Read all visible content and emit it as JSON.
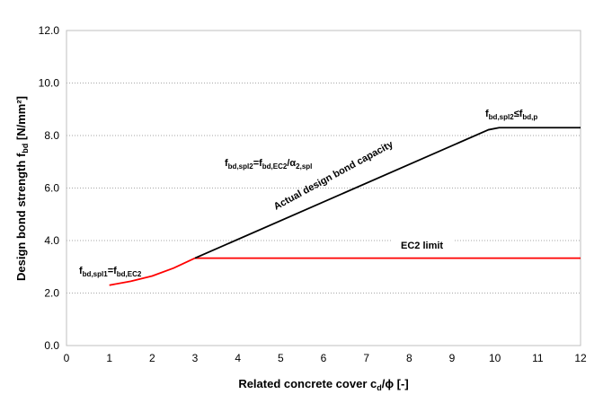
{
  "chart_data": {
    "type": "line",
    "title": "",
    "xlabel_main": "Related concrete cover c",
    "xlabel_sub": "d",
    "xlabel_tail": "/ϕ [-]",
    "ylabel_main": "Design bond strength f",
    "ylabel_sub": "bd",
    "ylabel_tail": " [N/mm²]",
    "xlim": [
      0,
      12
    ],
    "ylim": [
      0,
      12
    ],
    "x_ticks": [
      "0",
      "1",
      "2",
      "3",
      "4",
      "5",
      "6",
      "7",
      "8",
      "9",
      "10",
      "11",
      "12"
    ],
    "y_ticks": [
      "0.0",
      "2.0",
      "4.0",
      "6.0",
      "8.0",
      "10.0",
      "12.0"
    ],
    "grid": "horizontal-dotted",
    "series": [
      {
        "color": "#ff0000",
        "points": [
          [
            1,
            2.3
          ],
          [
            1.5,
            2.45
          ],
          [
            2,
            2.65
          ],
          [
            2.5,
            2.95
          ],
          [
            3,
            3.33
          ]
        ]
      },
      {
        "color": "#ff0000",
        "points": [
          [
            3,
            3.33
          ],
          [
            12,
            3.33
          ]
        ]
      },
      {
        "color": "#000000",
        "points": [
          [
            3,
            3.33
          ],
          [
            9.85,
            8.22
          ],
          [
            10.1,
            8.3
          ],
          [
            12,
            8.3
          ]
        ]
      }
    ],
    "annotations": {
      "spl1": {
        "f": "f",
        "sub1": "bd,spl1",
        "eq": "=f",
        "sub2": "bd,EC2"
      },
      "spl2": {
        "f": "f",
        "sub1": "bd,spl2",
        "eq": "=f",
        "sub2": "bd,EC2",
        "slash": "/α",
        "sub3": "2,spl"
      },
      "cap": {
        "f": "f",
        "sub1": "bd,spl2",
        "eq": "≤f",
        "sub2": "bd,p"
      },
      "actual": "Actual design bond capacity",
      "ec2": "EC2 limit"
    }
  }
}
